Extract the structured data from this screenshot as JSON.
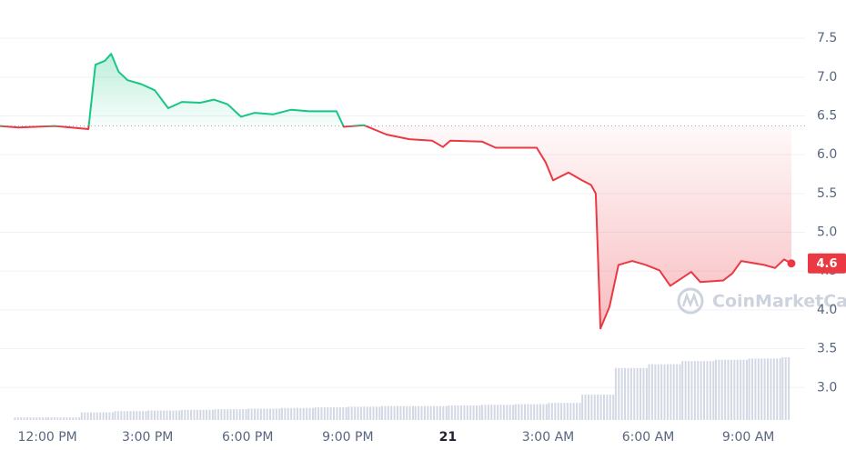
{
  "chart_data": {
    "type": "line",
    "x": [
      10.58,
      11.13,
      12.22,
      13.23,
      13.44,
      13.72,
      13.91,
      14.13,
      14.4,
      14.81,
      15.22,
      15.62,
      16.03,
      16.58,
      16.99,
      17.4,
      17.8,
      18.21,
      18.76,
      19.3,
      19.85,
      20.66,
      20.88,
      21.48,
      22.16,
      22.84,
      23.53,
      23.85,
      24.07,
      25.02,
      25.43,
      26.11,
      26.66,
      26.93,
      27.15,
      27.61,
      28.02,
      28.29,
      28.43,
      28.57,
      28.84,
      29.11,
      29.52,
      29.93,
      30.34,
      30.66,
      31.29,
      31.56,
      32.25,
      32.52,
      32.79,
      33.47,
      33.8,
      34.07,
      34.29
    ],
    "values": [
      6.37,
      6.35,
      6.37,
      6.33,
      7.16,
      7.21,
      7.3,
      7.07,
      6.96,
      6.91,
      6.83,
      6.6,
      6.68,
      6.67,
      6.71,
      6.65,
      6.49,
      6.54,
      6.52,
      6.58,
      6.56,
      6.56,
      6.36,
      6.38,
      6.26,
      6.2,
      6.18,
      6.1,
      6.18,
      6.17,
      6.09,
      6.09,
      6.09,
      5.9,
      5.67,
      5.77,
      5.67,
      5.61,
      5.5,
      3.76,
      4.04,
      4.58,
      4.63,
      4.58,
      4.51,
      4.31,
      4.49,
      4.36,
      4.38,
      4.47,
      4.63,
      4.58,
      4.54,
      4.65,
      4.6
    ],
    "baseline": 6.37,
    "up_color": "#16c784",
    "down_color": "#ea3943",
    "volume": {
      "x": [
        11,
        12,
        13,
        14,
        15,
        16,
        17,
        18,
        19,
        20,
        21,
        22,
        23,
        24,
        25,
        26,
        27,
        28,
        29,
        30,
        31,
        32,
        33,
        34
      ],
      "values": [
        4,
        4,
        12,
        14,
        15,
        16,
        17,
        18,
        19,
        20,
        21,
        22,
        22,
        23,
        24,
        25,
        27,
        40,
        82,
        88,
        93,
        95,
        97,
        99
      ],
      "color": "#d3d8e4"
    },
    "xlim": [
      10.58,
      34.7
    ],
    "xticks": [
      {
        "value": 12,
        "label": "12:00 PM"
      },
      {
        "value": 15,
        "label": "3:00 PM"
      },
      {
        "value": 18,
        "label": "6:00 PM"
      },
      {
        "value": 21,
        "label": "9:00 PM"
      },
      {
        "value": 24,
        "label": "21"
      },
      {
        "value": 27,
        "label": "3:00 AM"
      },
      {
        "value": 30,
        "label": "6:00 AM"
      },
      {
        "value": 33,
        "label": "9:00 AM"
      }
    ],
    "ylim": [
      2.64,
      7.9
    ],
    "yticks": [
      {
        "value": 3,
        "label": "3.0"
      },
      3.5,
      {
        "value": 4,
        "label": "4.0"
      },
      4.5,
      {
        "value": 5,
        "label": "5.0"
      },
      5.5,
      {
        "value": 6,
        "label": "6.0"
      },
      6.5,
      {
        "value": 7,
        "label": "7.0"
      },
      7.5
    ],
    "grid": true,
    "watermark": "CoinMarketCap"
  }
}
